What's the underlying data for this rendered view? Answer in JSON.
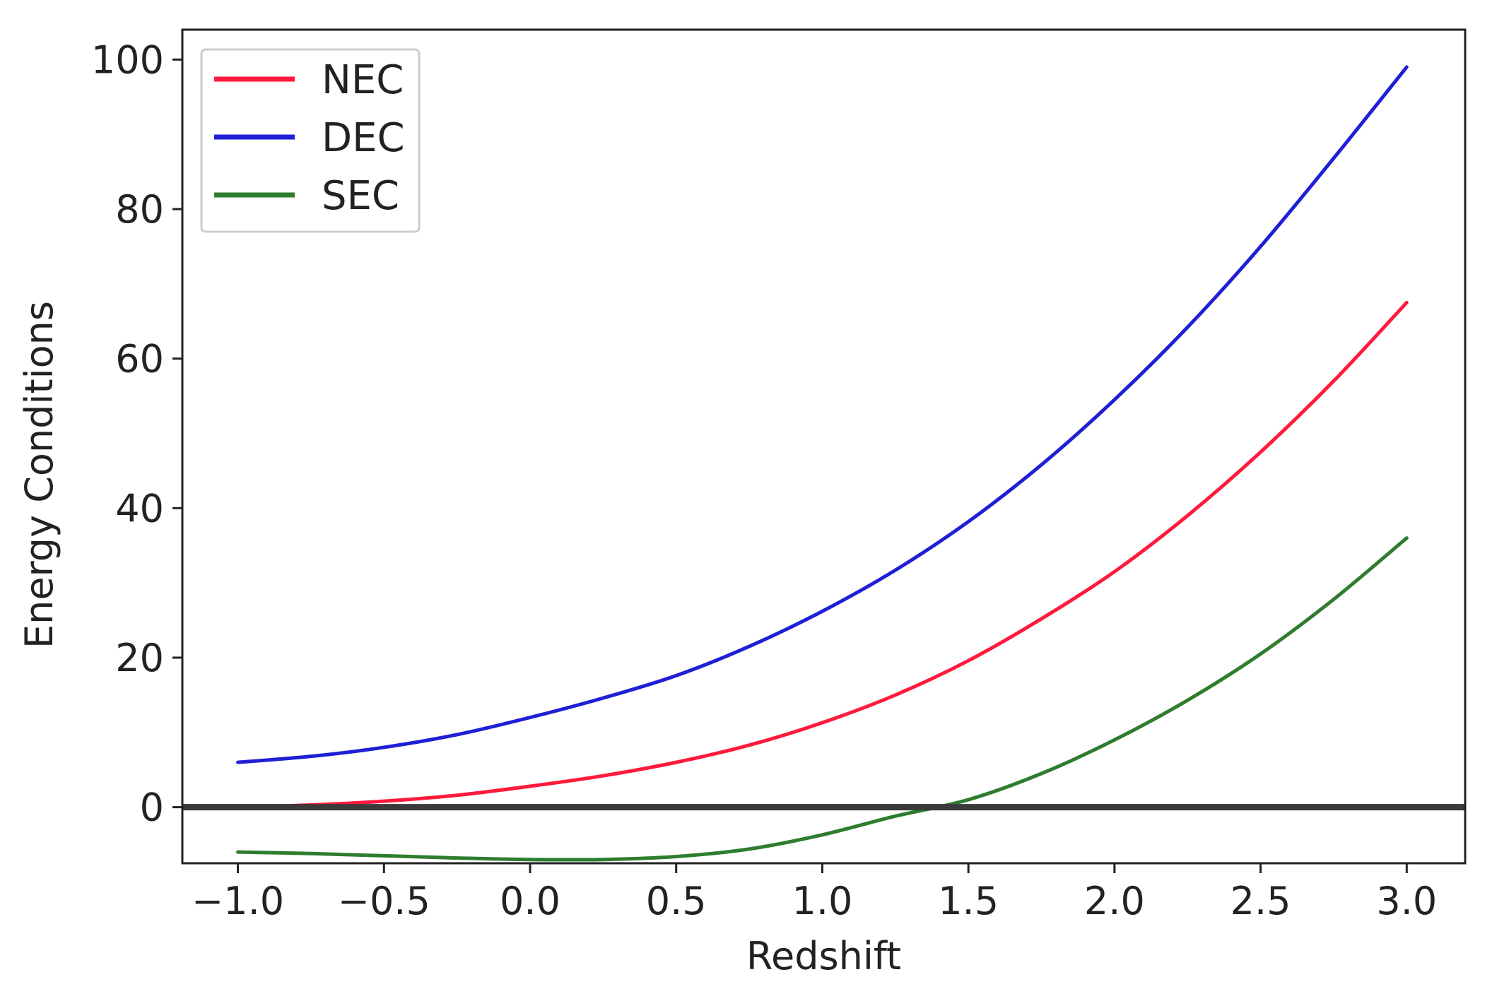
{
  "chart_data": {
    "type": "line",
    "title": "",
    "xlabel": "Redshift",
    "ylabel": "Energy Conditions",
    "xlim": [
      -1.19,
      3.2
    ],
    "ylim": [
      -7.5,
      104
    ],
    "xticks": [
      -1.0,
      -0.5,
      0.0,
      0.5,
      1.0,
      1.5,
      2.0,
      2.5,
      3.0
    ],
    "xtick_labels": [
      "−1.0",
      "−0.5",
      "0.0",
      "0.5",
      "1.0",
      "1.5",
      "2.0",
      "2.5",
      "3.0"
    ],
    "yticks": [
      0,
      20,
      40,
      60,
      80,
      100
    ],
    "ytick_labels": [
      "0",
      "20",
      "40",
      "60",
      "80",
      "100"
    ],
    "grid": false,
    "legend_position": "top-left",
    "reference_line": {
      "y": 0,
      "color": "#3a3a3a"
    },
    "x": [
      -1.0,
      -0.75,
      -0.5,
      -0.25,
      0.0,
      0.25,
      0.5,
      0.75,
      1.0,
      1.25,
      1.5,
      1.75,
      2.0,
      2.25,
      2.5,
      2.75,
      3.0
    ],
    "series": [
      {
        "name": "NEC",
        "color": "#ff1a3c",
        "values": [
          0.0,
          0.3,
          0.8,
          1.6,
          2.8,
          4.2,
          6.0,
          8.3,
          11.3,
          15.0,
          19.6,
          25.2,
          31.5,
          39.0,
          47.5,
          57.0,
          67.5
        ]
      },
      {
        "name": "DEC",
        "color": "#1f1fd6",
        "values": [
          6.0,
          6.8,
          8.0,
          9.7,
          12.0,
          14.6,
          17.6,
          21.5,
          26.2,
          31.7,
          38.2,
          45.8,
          54.5,
          64.2,
          75.0,
          86.8,
          99.0
        ]
      },
      {
        "name": "SEC",
        "color": "#2e7d2e",
        "values": [
          -6.0,
          -6.2,
          -6.5,
          -6.8,
          -7.0,
          -7.0,
          -6.6,
          -5.6,
          -3.7,
          -1.2,
          1.0,
          4.5,
          9.0,
          14.3,
          20.5,
          27.8,
          36.0
        ]
      }
    ]
  }
}
